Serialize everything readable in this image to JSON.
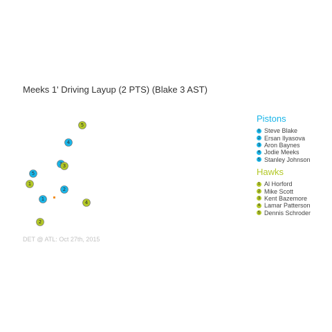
{
  "play": {
    "description": "Meeks 1' Driving Layup (2 PTS) (Blake 3 AST)"
  },
  "teams": {
    "home": {
      "name": "Pistons",
      "color": "#1ab5e8",
      "players": [
        {
          "number": "1",
          "name": "Steve Blake"
        },
        {
          "number": "2",
          "name": "Ersan Ilyasova"
        },
        {
          "number": "3",
          "name": "Aron Baynes"
        },
        {
          "number": "4",
          "name": "Jodie Meeks"
        },
        {
          "number": "5",
          "name": "Stanley Johnson"
        }
      ]
    },
    "away": {
      "name": "Hawks",
      "color": "#b3c827",
      "players": [
        {
          "number": "1",
          "name": "Al Horford"
        },
        {
          "number": "2",
          "name": "Mike Scott"
        },
        {
          "number": "3",
          "name": "Kent Bazemore"
        },
        {
          "number": "4",
          "name": "Lamar Patterson"
        },
        {
          "number": "5",
          "name": "Dennis Schroder"
        }
      ]
    }
  },
  "ball_color": "#f28c1c",
  "game": {
    "matchup": "DET @ ATL: Oct 27th, 2015"
  }
}
